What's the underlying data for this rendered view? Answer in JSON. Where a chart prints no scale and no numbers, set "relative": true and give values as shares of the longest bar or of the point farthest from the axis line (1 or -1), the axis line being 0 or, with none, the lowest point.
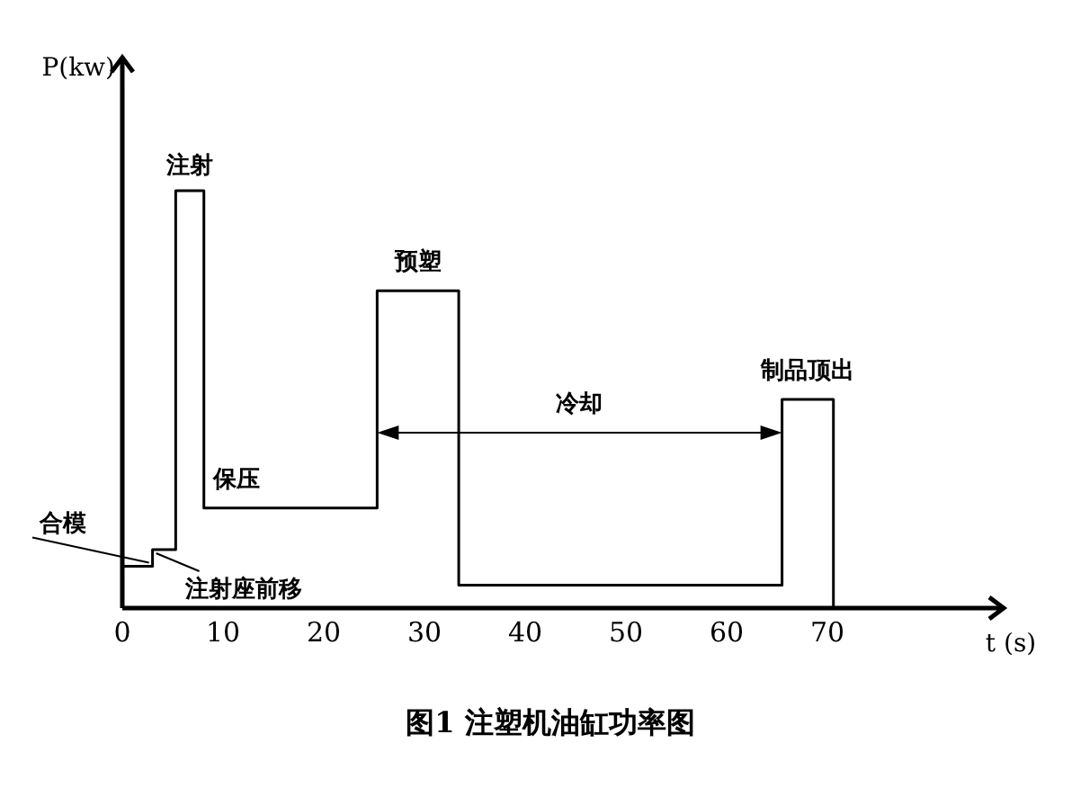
{
  "chart_data": {
    "type": "step",
    "title": "图1 注塑机油缸功率图",
    "xlabel": "t (s)",
    "ylabel": "P(kw)",
    "relative": true,
    "x": [
      0,
      3,
      5.3,
      8.1,
      25.3,
      33.4,
      65.5,
      70.6
    ],
    "values": [
      0.1,
      0.14,
      1,
      0.24,
      0.76,
      0.055,
      0.5,
      0
    ],
    "color": "#000000",
    "xlim": [
      0,
      85
    ],
    "xticks": [
      0,
      10,
      20,
      30,
      40,
      50,
      60,
      70
    ],
    "grid": false,
    "annotations": [
      "注射",
      "保压",
      "预塑",
      "冷却",
      "制品顶出",
      "合模",
      "注射座前移"
    ]
  }
}
